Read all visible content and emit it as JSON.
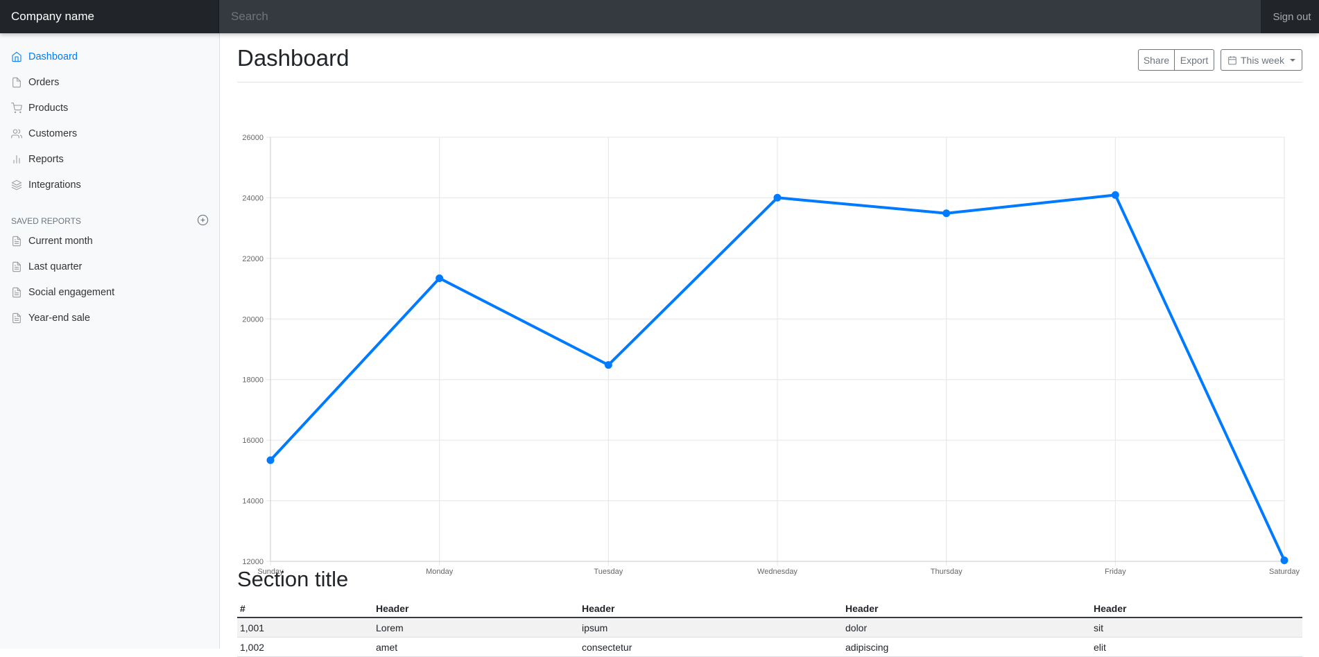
{
  "topbar": {
    "brand": "Company name",
    "search_placeholder": "Search",
    "sign_out": "Sign out"
  },
  "sidebar": {
    "items": [
      {
        "label": "Dashboard",
        "icon": "home-icon",
        "active": true
      },
      {
        "label": "Orders",
        "icon": "file-icon"
      },
      {
        "label": "Products",
        "icon": "shopping-cart-icon"
      },
      {
        "label": "Customers",
        "icon": "users-icon"
      },
      {
        "label": "Reports",
        "icon": "bar-chart-icon"
      },
      {
        "label": "Integrations",
        "icon": "layers-icon"
      }
    ],
    "saved_heading": "SAVED REPORTS",
    "saved_items": [
      {
        "label": "Current month",
        "icon": "file-text-icon"
      },
      {
        "label": "Last quarter",
        "icon": "file-text-icon"
      },
      {
        "label": "Social engagement",
        "icon": "file-text-icon"
      },
      {
        "label": "Year-end sale",
        "icon": "file-text-icon"
      }
    ]
  },
  "main": {
    "title": "Dashboard",
    "share_label": "Share",
    "export_label": "Export",
    "period_label": "This week",
    "section_title": "Section title"
  },
  "accent_color": "#007bff",
  "chart_data": {
    "type": "line",
    "categories": [
      "Sunday",
      "Monday",
      "Tuesday",
      "Wednesday",
      "Thursday",
      "Friday",
      "Saturday"
    ],
    "values": [
      15339,
      21345,
      18483,
      24003,
      23489,
      24092,
      12034
    ],
    "ylim": [
      12000,
      26000
    ],
    "yticks": [
      12000,
      14000,
      16000,
      18000,
      20000,
      22000,
      24000,
      26000
    ],
    "grid": true,
    "legend": "none",
    "color": "#007bff"
  },
  "table": {
    "headers": [
      "#",
      "Header",
      "Header",
      "Header",
      "Header"
    ],
    "rows": [
      [
        "1,001",
        "Lorem",
        "ipsum",
        "dolor",
        "sit"
      ],
      [
        "1,002",
        "amet",
        "consectetur",
        "adipiscing",
        "elit"
      ]
    ]
  }
}
